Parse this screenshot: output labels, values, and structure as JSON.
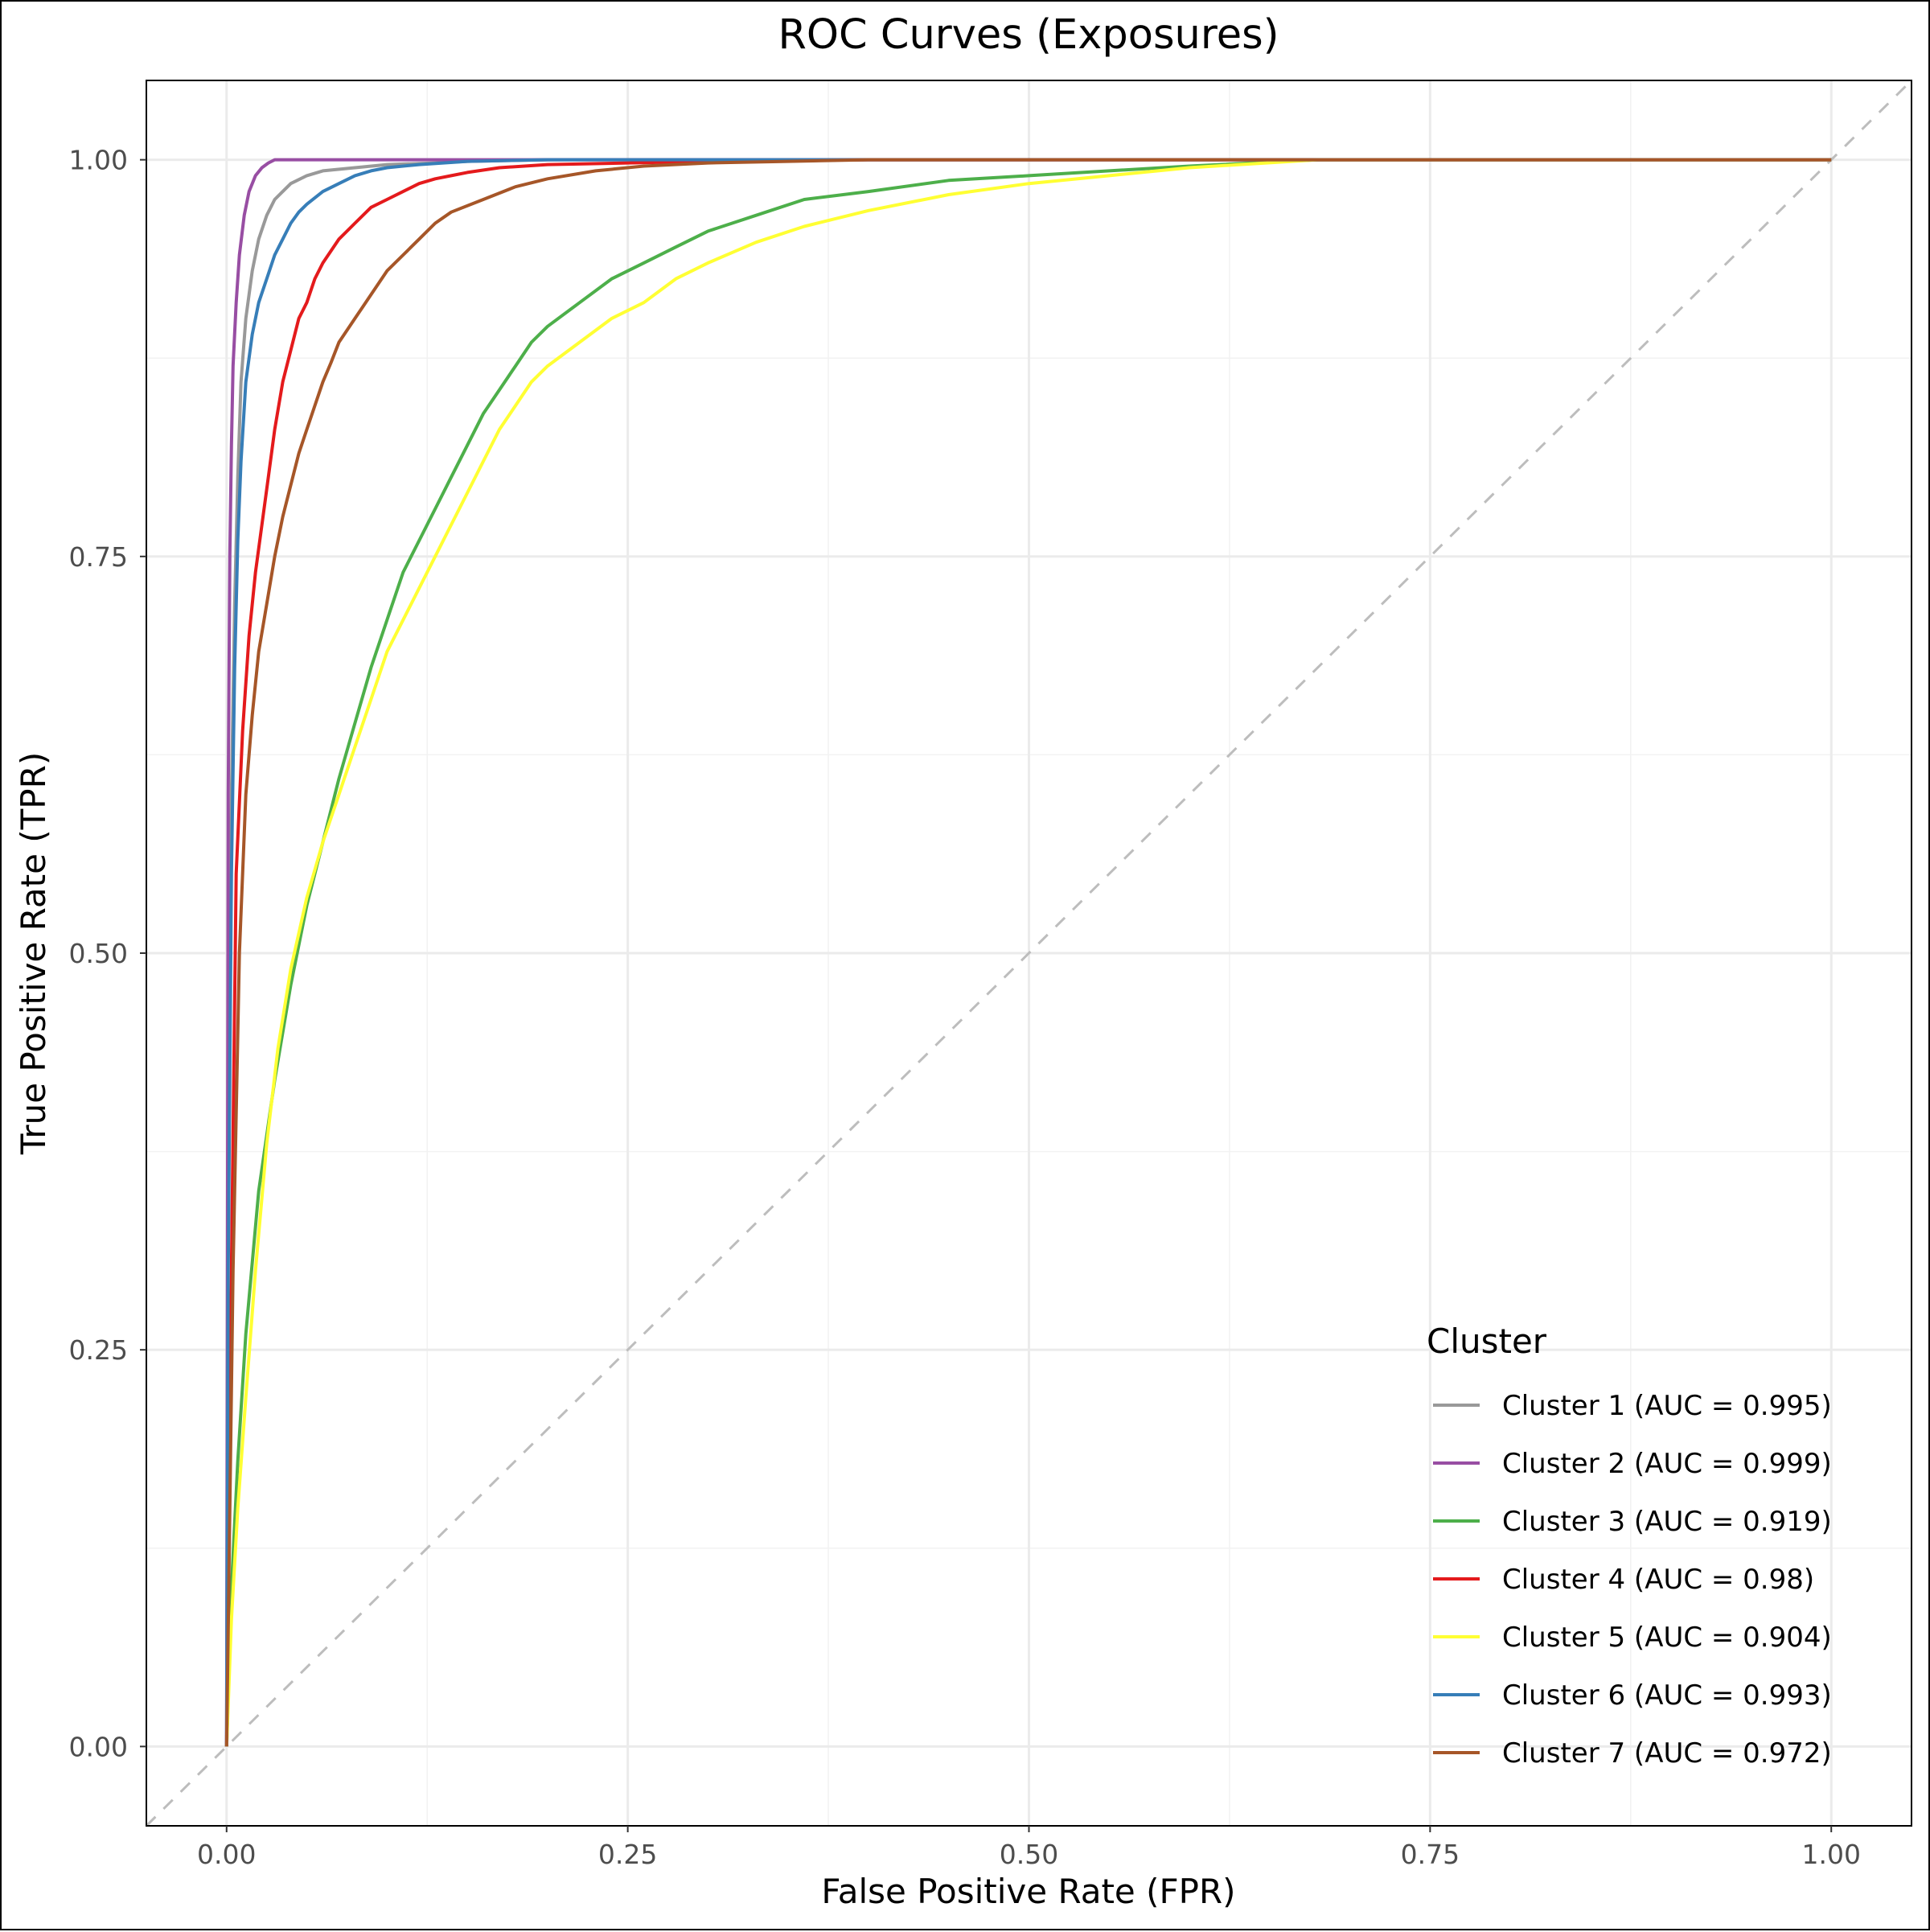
{
  "chart_data": {
    "type": "line",
    "title": "ROC Curves (Exposures)",
    "xlabel": "False Positive Rate (FPR)",
    "ylabel": "True Positive Rate (TPR)",
    "xlim": [
      -0.05,
      1.05
    ],
    "ylim": [
      -0.05,
      1.05
    ],
    "x_ticks": [
      0.0,
      0.25,
      0.5,
      0.75,
      1.0
    ],
    "x_tick_labels": [
      "0.00",
      "0.25",
      "0.50",
      "0.75",
      "1.00"
    ],
    "y_ticks": [
      0.0,
      0.25,
      0.5,
      0.75,
      1.0
    ],
    "y_tick_labels": [
      "0.00",
      "0.25",
      "0.50",
      "0.75",
      "1.00"
    ],
    "grid": true,
    "legend_position": "bottom-right",
    "legend_title": "Cluster",
    "reference_line": {
      "x": [
        -0.05,
        1.05
      ],
      "y": [
        -0.05,
        1.05
      ],
      "style": "dashed",
      "color": "#bdbdbd"
    },
    "series": [
      {
        "name": "Cluster 1 (AUC = 0.995)",
        "color": "#999999",
        "x": [
          0,
          0.001,
          0.003,
          0.005,
          0.007,
          0.009,
          0.012,
          0.016,
          0.02,
          0.025,
          0.03,
          0.035,
          0.04,
          0.05,
          0.06,
          0.08,
          0.1,
          0.13,
          0.15,
          0.2,
          1.0
        ],
        "y": [
          0,
          0.4,
          0.6,
          0.72,
          0.8,
          0.86,
          0.9,
          0.93,
          0.95,
          0.965,
          0.975,
          0.98,
          0.985,
          0.99,
          0.993,
          0.995,
          0.997,
          0.998,
          0.999,
          1.0,
          1.0
        ]
      },
      {
        "name": "Cluster 2 (AUC = 0.999)",
        "color": "#984ea3",
        "x": [
          0,
          0.001,
          0.002,
          0.003,
          0.004,
          0.006,
          0.008,
          0.011,
          0.014,
          0.018,
          0.022,
          0.026,
          0.03,
          1.0
        ],
        "y": [
          0,
          0.6,
          0.75,
          0.82,
          0.87,
          0.91,
          0.94,
          0.965,
          0.98,
          0.99,
          0.995,
          0.998,
          1.0,
          1.0
        ]
      },
      {
        "name": "Cluster 3 (AUC = 0.919)",
        "color": "#4daf4a",
        "x": [
          0,
          0.003,
          0.007,
          0.012,
          0.02,
          0.03,
          0.04,
          0.05,
          0.06,
          0.07,
          0.08,
          0.09,
          0.1,
          0.11,
          0.12,
          0.13,
          0.14,
          0.15,
          0.16,
          0.17,
          0.18,
          0.19,
          0.2,
          0.22,
          0.24,
          0.26,
          0.28,
          0.3,
          0.33,
          0.36,
          0.4,
          0.45,
          0.5,
          0.55,
          0.6,
          0.68,
          1.0
        ],
        "y": [
          0,
          0.1,
          0.18,
          0.26,
          0.35,
          0.42,
          0.48,
          0.53,
          0.57,
          0.61,
          0.645,
          0.68,
          0.71,
          0.74,
          0.76,
          0.78,
          0.8,
          0.82,
          0.84,
          0.855,
          0.87,
          0.885,
          0.895,
          0.91,
          0.925,
          0.935,
          0.945,
          0.955,
          0.965,
          0.975,
          0.98,
          0.987,
          0.99,
          0.993,
          0.996,
          1.0,
          1.0
        ]
      },
      {
        "name": "Cluster 4 (AUC = 0.98)",
        "color": "#e41a1c",
        "x": [
          0,
          0.003,
          0.006,
          0.01,
          0.014,
          0.018,
          0.022,
          0.026,
          0.03,
          0.035,
          0.04,
          0.045,
          0.05,
          0.055,
          0.06,
          0.07,
          0.08,
          0.09,
          0.1,
          0.11,
          0.12,
          0.13,
          0.14,
          0.15,
          0.17,
          0.2,
          0.25,
          0.3,
          0.35,
          0.4,
          1.0
        ],
        "y": [
          0,
          0.3,
          0.55,
          0.64,
          0.7,
          0.74,
          0.77,
          0.8,
          0.83,
          0.86,
          0.88,
          0.9,
          0.91,
          0.925,
          0.935,
          0.95,
          0.96,
          0.97,
          0.975,
          0.98,
          0.985,
          0.988,
          0.99,
          0.992,
          0.995,
          0.997,
          0.998,
          0.999,
          0.9995,
          1.0,
          1.0
        ]
      },
      {
        "name": "Cluster 5 (AUC = 0.904)",
        "color": "#ffff33",
        "x": [
          0,
          0.003,
          0.007,
          0.012,
          0.018,
          0.025,
          0.032,
          0.04,
          0.05,
          0.06,
          0.07,
          0.08,
          0.09,
          0.1,
          0.11,
          0.12,
          0.13,
          0.14,
          0.15,
          0.16,
          0.17,
          0.18,
          0.19,
          0.2,
          0.22,
          0.24,
          0.26,
          0.28,
          0.3,
          0.33,
          0.36,
          0.4,
          0.45,
          0.5,
          0.55,
          0.6,
          0.68,
          1.0
        ],
        "y": [
          0,
          0.08,
          0.15,
          0.22,
          0.3,
          0.38,
          0.44,
          0.49,
          0.535,
          0.57,
          0.6,
          0.63,
          0.66,
          0.69,
          0.71,
          0.73,
          0.75,
          0.77,
          0.79,
          0.81,
          0.83,
          0.845,
          0.86,
          0.87,
          0.885,
          0.9,
          0.91,
          0.925,
          0.935,
          0.948,
          0.958,
          0.968,
          0.978,
          0.985,
          0.99,
          0.995,
          1.0,
          1.0
        ]
      },
      {
        "name": "Cluster 6 (AUC = 0.993)",
        "color": "#377eb8",
        "x": [
          0,
          0.001,
          0.003,
          0.005,
          0.007,
          0.009,
          0.012,
          0.016,
          0.02,
          0.025,
          0.03,
          0.035,
          0.04,
          0.045,
          0.05,
          0.06,
          0.07,
          0.08,
          0.09,
          0.1,
          0.12,
          0.15,
          0.2,
          1.0
        ],
        "y": [
          0,
          0.3,
          0.55,
          0.68,
          0.76,
          0.81,
          0.86,
          0.89,
          0.91,
          0.925,
          0.94,
          0.95,
          0.96,
          0.967,
          0.972,
          0.98,
          0.985,
          0.99,
          0.993,
          0.995,
          0.997,
          0.999,
          1.0,
          1.0
        ]
      },
      {
        "name": "Cluster 7 (AUC = 0.972)",
        "color": "#a65628",
        "x": [
          0,
          0.004,
          0.008,
          0.012,
          0.016,
          0.02,
          0.025,
          0.03,
          0.035,
          0.04,
          0.045,
          0.05,
          0.055,
          0.06,
          0.065,
          0.07,
          0.08,
          0.09,
          0.1,
          0.11,
          0.12,
          0.13,
          0.14,
          0.16,
          0.18,
          0.2,
          0.23,
          0.26,
          0.3,
          0.35,
          0.4,
          1.0
        ],
        "y": [
          0,
          0.3,
          0.5,
          0.6,
          0.65,
          0.69,
          0.72,
          0.75,
          0.775,
          0.795,
          0.815,
          0.83,
          0.845,
          0.86,
          0.872,
          0.885,
          0.9,
          0.915,
          0.93,
          0.94,
          0.95,
          0.96,
          0.967,
          0.975,
          0.983,
          0.988,
          0.993,
          0.996,
          0.998,
          0.999,
          1.0,
          1.0
        ]
      }
    ]
  }
}
